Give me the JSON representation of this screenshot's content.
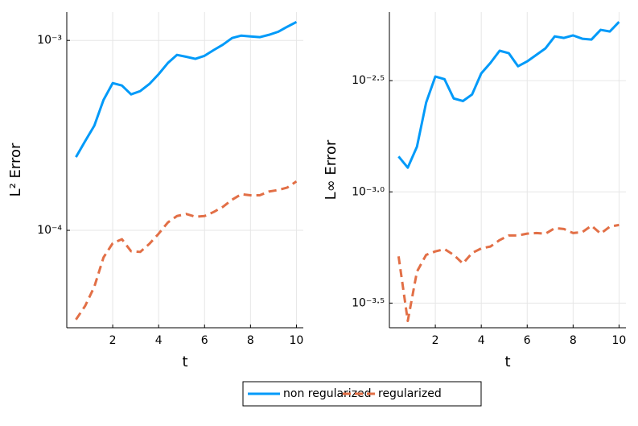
{
  "chart_data": [
    {
      "type": "line",
      "xlabel": "t",
      "ylabel": "L² Error",
      "log_y": true,
      "grid": true,
      "x": [
        0.4,
        0.8,
        1.2,
        1.6,
        2.0,
        2.4,
        2.8,
        3.2,
        3.6,
        4.0,
        4.4,
        4.8,
        5.2,
        5.6,
        6.0,
        6.4,
        6.8,
        7.2,
        7.6,
        8.0,
        8.4,
        8.8,
        9.2,
        9.6,
        10.0
      ],
      "xlim": [
        0,
        10.3
      ],
      "xticks": [
        2,
        4,
        6,
        8,
        10
      ],
      "ylim": [
        3.07e-05,
        0.00141
      ],
      "yticks": [
        {
          "value": 0.0001,
          "label": "10⁻⁴"
        },
        {
          "value": 0.001,
          "label": "10⁻³"
        }
      ],
      "series": [
        {
          "name": "non regularized",
          "color": "#009af9",
          "dash": false,
          "values": [
            0.000243,
            0.000295,
            0.000356,
            0.000486,
            0.000596,
            0.000579,
            0.00052,
            0.000541,
            0.00059,
            0.000664,
            0.00076,
            0.000839,
            0.00082,
            0.0008,
            0.00083,
            0.00089,
            0.00095,
            0.00103,
            0.00106,
            0.00105,
            0.00104,
            0.00107,
            0.00111,
            0.00118,
            0.00125
          ]
        },
        {
          "name": "regularized",
          "color": "#e26f46",
          "dash": true,
          "values": [
            3.39e-05,
            4e-05,
            5.05e-05,
            7.2e-05,
            8.55e-05,
            8.98e-05,
            7.76e-05,
            7.7e-05,
            8.5e-05,
            9.6e-05,
            0.00011,
            0.000119,
            0.000122,
            0.000118,
            0.000119,
            0.000125,
            0.000133,
            0.000145,
            0.000155,
            0.000153,
            0.000153,
            0.00016,
            0.000163,
            0.000168,
            0.000181
          ]
        }
      ]
    },
    {
      "type": "line",
      "xlabel": "t",
      "ylabel": "L∞ Error",
      "log_y": true,
      "grid": true,
      "x": [
        0.4,
        0.8,
        1.2,
        1.6,
        2.0,
        2.4,
        2.8,
        3.2,
        3.6,
        4.0,
        4.4,
        4.8,
        5.2,
        5.6,
        6.0,
        6.4,
        6.8,
        7.2,
        7.6,
        8.0,
        8.4,
        8.8,
        9.2,
        9.6,
        10.0
      ],
      "xlim": [
        0,
        10.3
      ],
      "xticks": [
        2,
        4,
        6,
        8,
        10
      ],
      "ylim": [
        0.000245,
        0.00643
      ],
      "yticks": [
        {
          "value": 0.00031623,
          "label": "10⁻³·⁵"
        },
        {
          "value": 0.001,
          "label": "10⁻³·⁰"
        },
        {
          "value": 0.0031623,
          "label": "10⁻²·⁵"
        }
      ],
      "series": [
        {
          "name": "non regularized",
          "color": "#009af9",
          "dash": false,
          "values": [
            0.001442,
            0.001285,
            0.001596,
            0.00252,
            0.0033,
            0.00321,
            0.00263,
            0.00256,
            0.00274,
            0.00341,
            0.0038,
            0.00431,
            0.0042,
            0.00367,
            0.00386,
            0.00413,
            0.00442,
            0.005,
            0.00492,
            0.00505,
            0.00488,
            0.00484,
            0.00535,
            0.00526,
            0.00581
          ]
        },
        {
          "name": "regularized",
          "color": "#e26f46",
          "dash": true,
          "values": [
            0.000513,
            0.000263,
            0.000438,
            0.000521,
            0.00054,
            0.000553,
            0.000521,
            0.000476,
            0.000531,
            0.000557,
            0.000568,
            0.000607,
            0.000637,
            0.000637,
            0.000649,
            0.000653,
            0.000649,
            0.000687,
            0.000681,
            0.000653,
            0.000659,
            0.000705,
            0.000649,
            0.000698,
            0.00071
          ]
        }
      ]
    }
  ]
}
